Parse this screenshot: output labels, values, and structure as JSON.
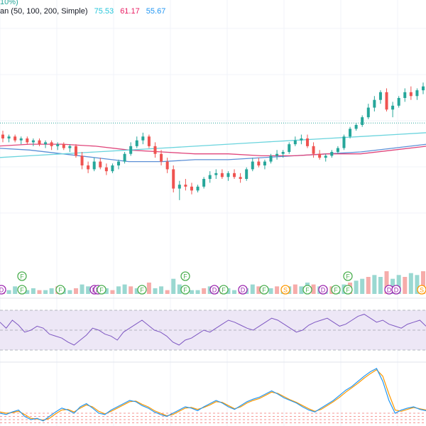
{
  "legend": {
    "top_fragment": "10%)",
    "ma_label": "an (50, 100, 200, Simple)",
    "ma_values": [
      {
        "value": "75.53",
        "color": "#26c6da"
      },
      {
        "value": "61.17",
        "color": "#e91e63"
      },
      {
        "value": "55.67",
        "color": "#2196f3"
      }
    ]
  },
  "colors": {
    "up": "#26a69a",
    "down": "#ef5350",
    "ma50": "#6ad4dd",
    "ma100": "#e0457b",
    "ma200": "#5b8fd6",
    "rsi_line": "#7e57c2",
    "stoch_k": "#2196f3",
    "stoch_d": "#ff9800",
    "band": "#ede7f6",
    "earnings_f": "#4caf50",
    "dividend_d": "#9c27b0",
    "split_s": "#ff9800",
    "price_line": "#26a69a"
  },
  "events": [
    {
      "letter": "D",
      "x": 2
    },
    {
      "letter": "F",
      "x": 31,
      "row": 2
    },
    {
      "letter": "F",
      "x": 31
    },
    {
      "letter": "F",
      "x": 85
    },
    {
      "letter": "D",
      "x": 133
    },
    {
      "letter": "D",
      "x": 138
    },
    {
      "letter": "F",
      "x": 143
    },
    {
      "letter": "F",
      "x": 200
    },
    {
      "letter": "F",
      "x": 261,
      "row": 2
    },
    {
      "letter": "F",
      "x": 261
    },
    {
      "letter": "D",
      "x": 302
    },
    {
      "letter": "F",
      "x": 315
    },
    {
      "letter": "D",
      "x": 342
    },
    {
      "letter": "F",
      "x": 372
    },
    {
      "letter": "S",
      "x": 402
    },
    {
      "letter": "F",
      "x": 433
    },
    {
      "letter": "D",
      "x": 455
    },
    {
      "letter": "F",
      "x": 473
    },
    {
      "letter": "F",
      "x": 490,
      "row": 2
    },
    {
      "letter": "F",
      "x": 490
    },
    {
      "letter": "D",
      "x": 548
    },
    {
      "letter": "D",
      "x": 558
    },
    {
      "letter": "S",
      "x": 594
    }
  ],
  "chart_data": {
    "type": "candlestick",
    "price_line_level": 98,
    "candles": [
      {
        "o": 92,
        "h": 94,
        "l": 88,
        "c": 90
      },
      {
        "o": 90,
        "h": 92,
        "l": 88,
        "c": 91
      },
      {
        "o": 91,
        "h": 92,
        "l": 88,
        "c": 89
      },
      {
        "o": 89,
        "h": 91,
        "l": 87,
        "c": 90
      },
      {
        "o": 90,
        "h": 91,
        "l": 87,
        "c": 88
      },
      {
        "o": 88,
        "h": 90,
        "l": 86,
        "c": 89
      },
      {
        "o": 89,
        "h": 90,
        "l": 86,
        "c": 87
      },
      {
        "o": 87,
        "h": 89,
        "l": 85,
        "c": 88
      },
      {
        "o": 88,
        "h": 89,
        "l": 84,
        "c": 86
      },
      {
        "o": 86,
        "h": 88,
        "l": 84,
        "c": 87
      },
      {
        "o": 87,
        "h": 88,
        "l": 84,
        "c": 85
      },
      {
        "o": 85,
        "h": 87,
        "l": 83,
        "c": 86
      },
      {
        "o": 86,
        "h": 87,
        "l": 80,
        "c": 81
      },
      {
        "o": 81,
        "h": 83,
        "l": 74,
        "c": 76
      },
      {
        "o": 76,
        "h": 78,
        "l": 72,
        "c": 74
      },
      {
        "o": 74,
        "h": 80,
        "l": 73,
        "c": 78
      },
      {
        "o": 78,
        "h": 80,
        "l": 74,
        "c": 75
      },
      {
        "o": 75,
        "h": 77,
        "l": 71,
        "c": 73
      },
      {
        "o": 73,
        "h": 77,
        "l": 72,
        "c": 76
      },
      {
        "o": 76,
        "h": 79,
        "l": 74,
        "c": 78
      },
      {
        "o": 78,
        "h": 83,
        "l": 77,
        "c": 82
      },
      {
        "o": 82,
        "h": 88,
        "l": 81,
        "c": 86
      },
      {
        "o": 86,
        "h": 91,
        "l": 85,
        "c": 89
      },
      {
        "o": 89,
        "h": 93,
        "l": 87,
        "c": 91
      },
      {
        "o": 91,
        "h": 92,
        "l": 85,
        "c": 86
      },
      {
        "o": 86,
        "h": 88,
        "l": 80,
        "c": 82
      },
      {
        "o": 82,
        "h": 84,
        "l": 76,
        "c": 78
      },
      {
        "o": 78,
        "h": 80,
        "l": 72,
        "c": 74
      },
      {
        "o": 74,
        "h": 76,
        "l": 62,
        "c": 64
      },
      {
        "o": 64,
        "h": 68,
        "l": 58,
        "c": 66
      },
      {
        "o": 66,
        "h": 69,
        "l": 63,
        "c": 65
      },
      {
        "o": 65,
        "h": 67,
        "l": 61,
        "c": 63
      },
      {
        "o": 63,
        "h": 66,
        "l": 62,
        "c": 65
      },
      {
        "o": 65,
        "h": 70,
        "l": 64,
        "c": 69
      },
      {
        "o": 69,
        "h": 73,
        "l": 67,
        "c": 71
      },
      {
        "o": 71,
        "h": 74,
        "l": 69,
        "c": 72
      },
      {
        "o": 72,
        "h": 74,
        "l": 69,
        "c": 70
      },
      {
        "o": 70,
        "h": 73,
        "l": 68,
        "c": 72
      },
      {
        "o": 72,
        "h": 74,
        "l": 69,
        "c": 70
      },
      {
        "o": 70,
        "h": 72,
        "l": 67,
        "c": 69
      },
      {
        "o": 69,
        "h": 75,
        "l": 68,
        "c": 74
      },
      {
        "o": 74,
        "h": 80,
        "l": 73,
        "c": 78
      },
      {
        "o": 78,
        "h": 80,
        "l": 75,
        "c": 76
      },
      {
        "o": 76,
        "h": 79,
        "l": 74,
        "c": 78
      },
      {
        "o": 78,
        "h": 82,
        "l": 77,
        "c": 81
      },
      {
        "o": 81,
        "h": 84,
        "l": 79,
        "c": 82
      },
      {
        "o": 82,
        "h": 84,
        "l": 80,
        "c": 83
      },
      {
        "o": 83,
        "h": 88,
        "l": 82,
        "c": 87
      },
      {
        "o": 87,
        "h": 91,
        "l": 86,
        "c": 89
      },
      {
        "o": 89,
        "h": 92,
        "l": 87,
        "c": 90
      },
      {
        "o": 90,
        "h": 92,
        "l": 85,
        "c": 86
      },
      {
        "o": 86,
        "h": 88,
        "l": 80,
        "c": 82
      },
      {
        "o": 82,
        "h": 84,
        "l": 79,
        "c": 80
      },
      {
        "o": 80,
        "h": 82,
        "l": 78,
        "c": 81
      },
      {
        "o": 81,
        "h": 84,
        "l": 80,
        "c": 83
      },
      {
        "o": 83,
        "h": 86,
        "l": 82,
        "c": 85
      },
      {
        "o": 85,
        "h": 92,
        "l": 84,
        "c": 91
      },
      {
        "o": 91,
        "h": 96,
        "l": 90,
        "c": 95
      },
      {
        "o": 95,
        "h": 98,
        "l": 94,
        "c": 97
      },
      {
        "o": 97,
        "h": 102,
        "l": 96,
        "c": 101
      },
      {
        "o": 101,
        "h": 108,
        "l": 100,
        "c": 106
      },
      {
        "o": 106,
        "h": 112,
        "l": 104,
        "c": 110
      },
      {
        "o": 110,
        "h": 115,
        "l": 108,
        "c": 114
      },
      {
        "o": 114,
        "h": 116,
        "l": 104,
        "c": 105
      },
      {
        "o": 105,
        "h": 109,
        "l": 101,
        "c": 107
      },
      {
        "o": 107,
        "h": 112,
        "l": 106,
        "c": 111
      },
      {
        "o": 111,
        "h": 116,
        "l": 109,
        "c": 114
      },
      {
        "o": 114,
        "h": 117,
        "l": 110,
        "c": 112
      },
      {
        "o": 112,
        "h": 116,
        "l": 110,
        "c": 115
      },
      {
        "o": 115,
        "h": 119,
        "l": 113,
        "c": 117
      }
    ],
    "ma50": [
      80,
      81,
      82,
      83,
      84,
      85,
      86,
      87,
      88,
      89,
      90,
      91,
      92,
      93
    ],
    "ma100": [
      86,
      87,
      87,
      86,
      84,
      83,
      82,
      82,
      81,
      81,
      82,
      82,
      84,
      86
    ],
    "ma200": [
      85,
      84,
      82,
      80,
      78,
      78,
      79,
      79,
      80,
      81,
      82,
      83,
      85,
      87
    ],
    "volume": [
      3,
      2,
      4,
      3,
      2,
      3,
      2,
      2,
      3,
      4,
      3,
      2,
      3,
      5,
      4,
      3,
      2,
      3,
      2,
      4,
      5,
      4,
      3,
      2,
      6,
      3,
      4,
      2,
      8,
      5,
      3,
      2,
      2,
      3,
      4,
      3,
      2,
      3,
      2,
      2,
      3,
      5,
      4,
      3,
      3,
      4,
      3,
      4,
      5,
      4,
      6,
      5,
      4,
      3,
      4,
      3,
      5,
      6,
      7,
      8,
      9,
      10,
      9,
      12,
      8,
      10,
      9,
      11,
      10,
      12
    ],
    "rsi": [
      58,
      52,
      60,
      55,
      48,
      50,
      54,
      52,
      46,
      44,
      42,
      38,
      35,
      40,
      45,
      52,
      50,
      46,
      44,
      40,
      48,
      52,
      56,
      60,
      55,
      50,
      48,
      44,
      38,
      35,
      40,
      42,
      46,
      50,
      48,
      52,
      56,
      60,
      58,
      55,
      52,
      50,
      54,
      58,
      62,
      60,
      56,
      52,
      48,
      50,
      55,
      58,
      60,
      62,
      58,
      54,
      56,
      60,
      64,
      66,
      62,
      58,
      60,
      56,
      54,
      52,
      56,
      58,
      60,
      54
    ],
    "stoch_k": [
      20,
      18,
      22,
      25,
      15,
      10,
      12,
      8,
      15,
      22,
      28,
      25,
      20,
      30,
      35,
      28,
      20,
      18,
      25,
      30,
      35,
      40,
      38,
      32,
      28,
      22,
      18,
      15,
      20,
      25,
      30,
      28,
      24,
      30,
      35,
      40,
      36,
      30,
      26,
      32,
      38,
      42,
      45,
      50,
      55,
      50,
      44,
      40,
      36,
      30,
      25,
      22,
      28,
      34,
      40,
      48,
      56,
      62,
      70,
      78,
      85,
      90,
      70,
      40,
      20,
      25,
      28,
      30,
      26,
      24
    ],
    "stoch_d": [
      22,
      20,
      21,
      23,
      18,
      12,
      11,
      9,
      12,
      19,
      25,
      26,
      22,
      28,
      33,
      30,
      23,
      19,
      23,
      28,
      33,
      38,
      39,
      34,
      30,
      24,
      20,
      16,
      18,
      23,
      28,
      29,
      26,
      29,
      33,
      38,
      37,
      32,
      27,
      30,
      36,
      40,
      43,
      48,
      53,
      51,
      46,
      41,
      37,
      32,
      27,
      23,
      26,
      32,
      38,
      45,
      53,
      60,
      67,
      75,
      82,
      88,
      78,
      50,
      25,
      23,
      26,
      29,
      27,
      25
    ]
  }
}
